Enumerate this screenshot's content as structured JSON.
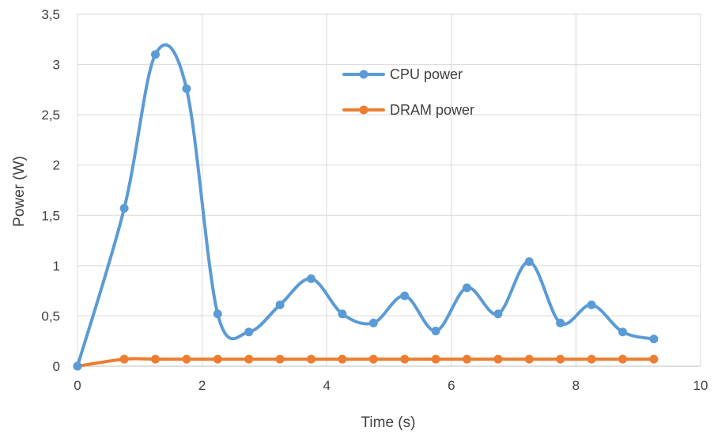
{
  "chart_data": {
    "type": "line",
    "title": "",
    "xlabel": "Time (s)",
    "ylabel": "Power (W)",
    "xlim": [
      0,
      10
    ],
    "ylim": [
      0,
      3.5
    ],
    "x_ticks": [
      0,
      2,
      4,
      6,
      8,
      10
    ],
    "x_tick_labels": [
      "0",
      "2",
      "4",
      "6",
      "8",
      "10"
    ],
    "y_ticks": [
      0,
      0.5,
      1,
      1.5,
      2,
      2.5,
      3,
      3.5
    ],
    "y_tick_labels": [
      "0",
      "0,5",
      "1",
      "1,5",
      "2",
      "2,5",
      "3",
      "3,5"
    ],
    "grid": true,
    "smooth": true,
    "legend_position": "top-center",
    "series": [
      {
        "name": "CPU power",
        "color": "#5B9BD5",
        "x": [
          0,
          0.75,
          1.25,
          1.75,
          2.25,
          2.75,
          3.25,
          3.75,
          4.25,
          4.75,
          5.25,
          5.75,
          6.25,
          6.75,
          7.25,
          7.75,
          8.25,
          8.75,
          9.25
        ],
        "y": [
          0,
          1.57,
          3.1,
          2.76,
          0.52,
          0.34,
          0.61,
          0.87,
          0.52,
          0.43,
          0.7,
          0.35,
          0.78,
          0.52,
          1.04,
          0.43,
          0.61,
          0.34,
          0.27
        ]
      },
      {
        "name": "DRAM power",
        "color": "#ED7D31",
        "x": [
          0,
          0.75,
          1.25,
          1.75,
          2.25,
          2.75,
          3.25,
          3.75,
          4.25,
          4.75,
          5.25,
          5.75,
          6.25,
          6.75,
          7.25,
          7.75,
          8.25,
          8.75,
          9.25
        ],
        "y": [
          0,
          0.07,
          0.07,
          0.07,
          0.07,
          0.07,
          0.07,
          0.07,
          0.07,
          0.07,
          0.07,
          0.07,
          0.07,
          0.07,
          0.07,
          0.07,
          0.07,
          0.07,
          0.07
        ]
      }
    ]
  }
}
